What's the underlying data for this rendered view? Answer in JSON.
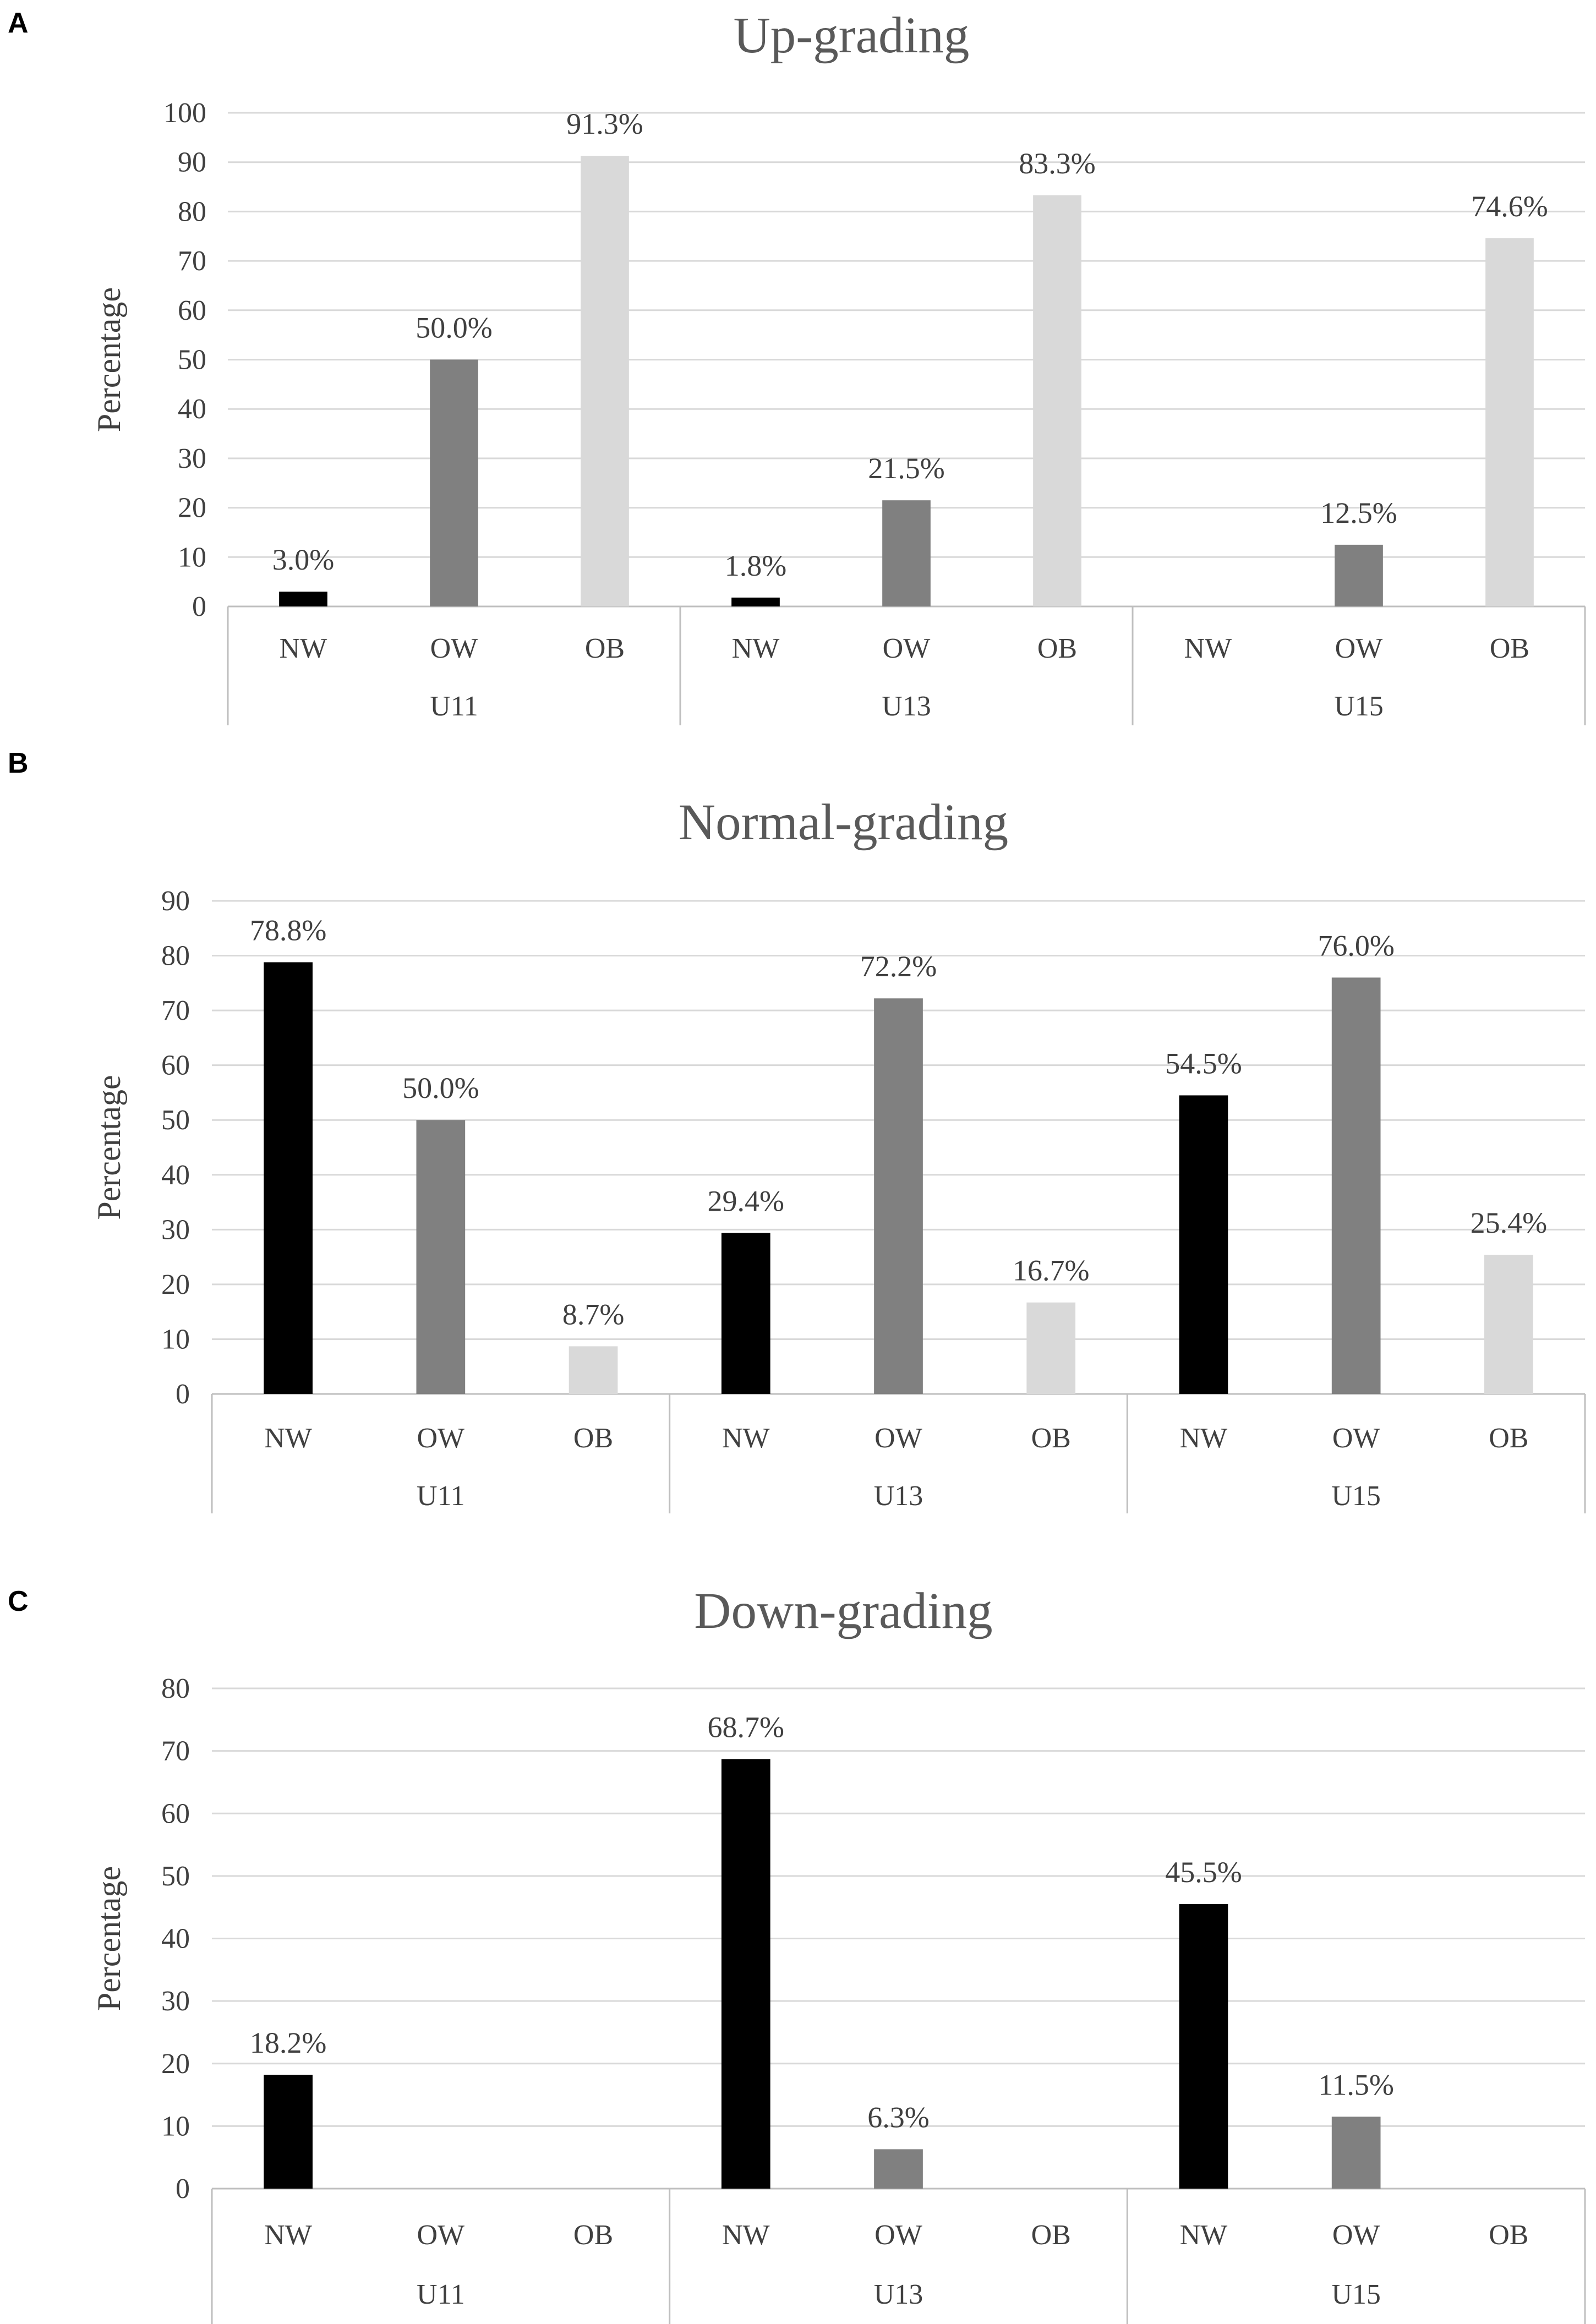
{
  "chart_data": [
    {
      "panel_letter": "A",
      "type": "bar",
      "title": "Up-grading",
      "xlabel": "",
      "ylabel": "Percentage",
      "ylim": [
        0,
        100
      ],
      "yticks": [
        "0",
        "10",
        "20",
        "30",
        "40",
        "50",
        "60",
        "70",
        "80",
        "90",
        "100"
      ],
      "grid": true,
      "groups": [
        "U11",
        "U13",
        "U15"
      ],
      "categories": [
        "NW",
        "OW",
        "OB"
      ],
      "series": [
        {
          "name": "NW",
          "color": "#000000",
          "values": [
            3.0,
            1.8,
            null
          ],
          "labels": [
            "3.0%",
            "1.8%",
            ""
          ]
        },
        {
          "name": "OW",
          "color": "#808080",
          "values": [
            50.0,
            21.5,
            12.5
          ],
          "labels": [
            "50.0%",
            "21.5%",
            "12.5%"
          ]
        },
        {
          "name": "OB",
          "color": "#d9d9d9",
          "values": [
            91.3,
            83.3,
            74.6
          ],
          "labels": [
            "91.3%",
            "83.3%",
            "74.6%"
          ]
        }
      ]
    },
    {
      "panel_letter": "B",
      "type": "bar",
      "title": "Normal-grading",
      "xlabel": "",
      "ylabel": "Percentage",
      "ylim": [
        0,
        90
      ],
      "yticks": [
        "0",
        "10",
        "20",
        "30",
        "40",
        "50",
        "60",
        "70",
        "80",
        "90"
      ],
      "grid": true,
      "groups": [
        "U11",
        "U13",
        "U15"
      ],
      "categories": [
        "NW",
        "OW",
        "OB"
      ],
      "series": [
        {
          "name": "NW",
          "color": "#000000",
          "values": [
            78.8,
            29.4,
            54.5
          ],
          "labels": [
            "78.8%",
            "29.4%",
            "54.5%"
          ]
        },
        {
          "name": "OW",
          "color": "#808080",
          "values": [
            50.0,
            72.2,
            76.0
          ],
          "labels": [
            "50.0%",
            "72.2%",
            "76.0%"
          ]
        },
        {
          "name": "OB",
          "color": "#d9d9d9",
          "values": [
            8.7,
            16.7,
            25.4
          ],
          "labels": [
            "8.7%",
            "16.7%",
            "25.4%"
          ]
        }
      ]
    },
    {
      "panel_letter": "C",
      "type": "bar",
      "title": "Down-grading",
      "xlabel": "",
      "ylabel": "Percentage",
      "ylim": [
        0,
        80
      ],
      "yticks": [
        "0",
        "10",
        "20",
        "30",
        "40",
        "50",
        "60",
        "70",
        "80"
      ],
      "grid": true,
      "groups": [
        "U11",
        "U13",
        "U15"
      ],
      "categories": [
        "NW",
        "OW",
        "OB"
      ],
      "series": [
        {
          "name": "NW",
          "color": "#000000",
          "values": [
            18.2,
            68.7,
            45.5
          ],
          "labels": [
            "18.2%",
            "68.7%",
            "45.5%"
          ]
        },
        {
          "name": "OW",
          "color": "#808080",
          "values": [
            null,
            6.3,
            11.5
          ],
          "labels": [
            "",
            "6.3%",
            "11.5%"
          ]
        },
        {
          "name": "OB",
          "color": "#d9d9d9",
          "values": [
            null,
            null,
            null
          ],
          "labels": [
            "",
            "",
            ""
          ]
        }
      ]
    }
  ]
}
